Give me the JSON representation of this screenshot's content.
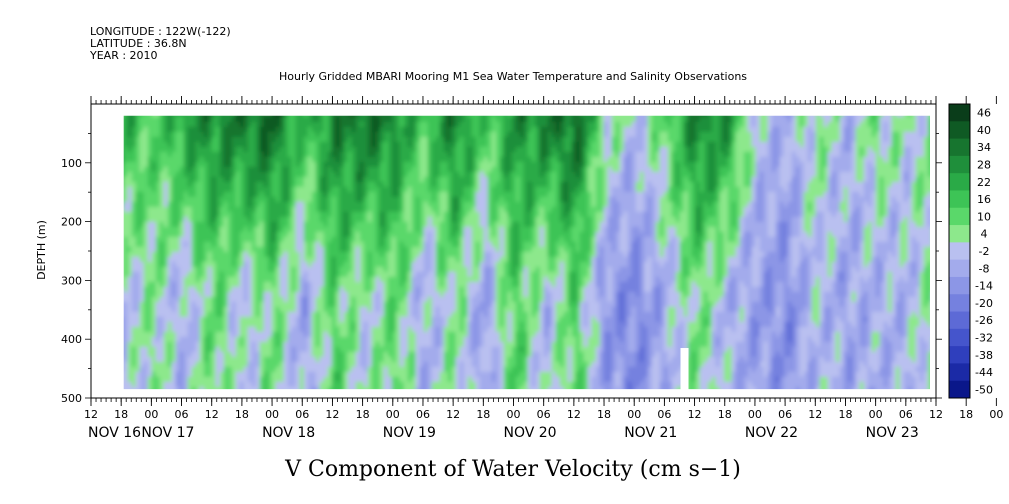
{
  "header": {
    "longitude": "LONGITUDE : 122W(-122)",
    "latitude": "LATITUDE : 36.8N",
    "year": "YEAR : 2010"
  },
  "chart_data": {
    "type": "heatmap",
    "title": "Hourly Gridded MBARI Mooring M1 Sea Water Temperature and Salinity Observations",
    "xlabel": "V Component of Water Velocity (cm s−1)",
    "ylabel": "DEPTH (m)",
    "ylim": [
      500,
      0
    ],
    "yticks": [
      100,
      200,
      300,
      400,
      500
    ],
    "xlim_hours": [
      0,
      168
    ],
    "hour_ticks": [
      "12",
      "18",
      "00",
      "06",
      "12",
      "18",
      "00",
      "06",
      "12",
      "18",
      "00",
      "06",
      "12",
      "18",
      "00",
      "06",
      "12",
      "18",
      "00",
      "06",
      "12",
      "18",
      "00",
      "06",
      "12",
      "18",
      "00",
      "06",
      "12",
      "18",
      "00",
      "06",
      "12"
    ],
    "date_labels": [
      "NOV 16",
      "NOV 17",
      "NOV 18",
      "NOV 19",
      "NOV 20",
      "NOV 21",
      "NOV 22",
      "NOV 23"
    ],
    "data_depth_range": [
      20,
      485
    ],
    "colorbar": {
      "labels": [
        "46",
        "40",
        "34",
        "28",
        "22",
        "16",
        "10",
        "4",
        "-2",
        "-8",
        "-14",
        "-20",
        "-26",
        "-32",
        "-38",
        "-44",
        "-50"
      ],
      "colors": [
        "#0a3d1a",
        "#0f5a24",
        "#17752f",
        "#1f8f3b",
        "#2aaa47",
        "#3dc456",
        "#5ad86a",
        "#8de88c",
        "#b9c0f0",
        "#a3abec",
        "#8c96e6",
        "#7581df",
        "#5d6ad6",
        "#4555cc",
        "#2f3fbd",
        "#1b2aa6",
        "#0a178a"
      ]
    },
    "gap": {
      "hour": 118,
      "depth_from": 415,
      "depth_to": 490
    },
    "columns": [
      {
        "hour": 6,
        "shallow": 18,
        "deep": -8
      },
      {
        "hour": 12,
        "shallow": 8,
        "deep": 2
      },
      {
        "hour": 18,
        "shallow": 22,
        "deep": -10
      },
      {
        "hour": 24,
        "shallow": 26,
        "deep": 6
      },
      {
        "hour": 30,
        "shallow": 30,
        "deep": -6
      },
      {
        "hour": 36,
        "shallow": 34,
        "deep": 4
      },
      {
        "hour": 42,
        "shallow": 14,
        "deep": -12
      },
      {
        "hour": 48,
        "shallow": 28,
        "deep": 8
      },
      {
        "hour": 54,
        "shallow": 32,
        "deep": -4
      },
      {
        "hour": 60,
        "shallow": 26,
        "deep": 6
      },
      {
        "hour": 66,
        "shallow": 12,
        "deep": -10
      },
      {
        "hour": 72,
        "shallow": 30,
        "deep": 2
      },
      {
        "hour": 78,
        "shallow": 10,
        "deep": -14
      },
      {
        "hour": 84,
        "shallow": 24,
        "deep": 10
      },
      {
        "hour": 90,
        "shallow": 28,
        "deep": -8
      },
      {
        "hour": 96,
        "shallow": 34,
        "deep": 8
      },
      {
        "hour": 102,
        "shallow": 2,
        "deep": -16
      },
      {
        "hour": 108,
        "shallow": -6,
        "deep": -20
      },
      {
        "hour": 114,
        "shallow": 8,
        "deep": -10
      },
      {
        "hour": 120,
        "shallow": 28,
        "deep": 4
      },
      {
        "hour": 126,
        "shallow": 24,
        "deep": -8
      },
      {
        "hour": 132,
        "shallow": -6,
        "deep": -14
      },
      {
        "hour": 138,
        "shallow": -10,
        "deep": -18
      },
      {
        "hour": 144,
        "shallow": 2,
        "deep": -6
      },
      {
        "hour": 150,
        "shallow": -8,
        "deep": -12
      },
      {
        "hour": 156,
        "shallow": 4,
        "deep": -10
      },
      {
        "hour": 162,
        "shallow": -4,
        "deep": -8
      },
      {
        "hour": 168,
        "shallow": 6,
        "deep": 2
      }
    ]
  }
}
